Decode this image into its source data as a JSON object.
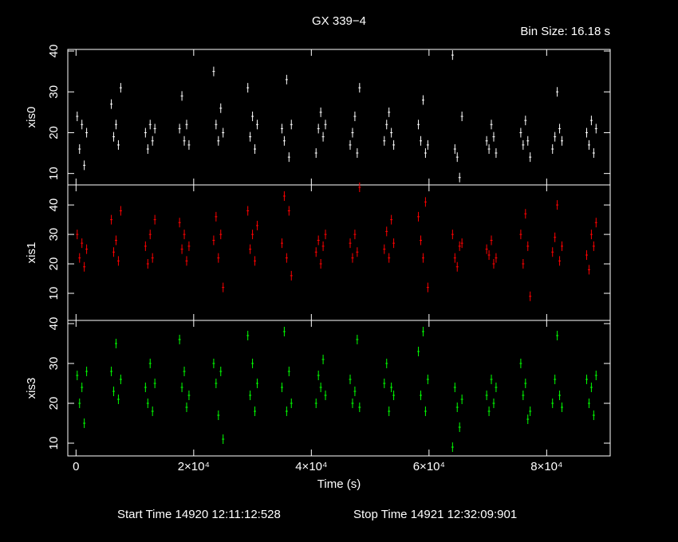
{
  "title": "GX 339−4",
  "subtitle": "Bin Size: 16.18 s",
  "footer": [
    "Start Time 14920 12:11:12:528",
    "Stop Time 14921 12:32:09:901"
  ],
  "chart_data": [
    {
      "type": "scatter",
      "ylabel": "xis0",
      "color": "#ffffff",
      "x": [
        200,
        600,
        1000,
        1400,
        1800,
        6000,
        6400,
        6800,
        7200,
        7600,
        11800,
        12200,
        12600,
        13000,
        13400,
        17600,
        18000,
        18400,
        18800,
        19200,
        23400,
        23800,
        24200,
        24600,
        25000,
        29200,
        29600,
        30000,
        30400,
        30800,
        35000,
        35400,
        35800,
        36200,
        36600,
        40800,
        41200,
        41600,
        42000,
        42400,
        46600,
        47000,
        47400,
        47800,
        48200,
        52400,
        52800,
        53200,
        53600,
        54000,
        58200,
        58600,
        59000,
        59400,
        59800,
        64000,
        64400,
        64800,
        65200,
        65600,
        69800,
        70200,
        70600,
        71000,
        71400,
        75600,
        76000,
        76400,
        76800,
        77200,
        81000,
        81400,
        81800,
        82200,
        82600,
        86800,
        87200,
        87600,
        88000,
        88400
      ],
      "values": [
        24,
        16,
        22,
        12,
        20,
        27,
        19,
        22,
        17,
        31,
        20,
        16,
        22,
        18,
        21,
        21,
        29,
        18,
        22,
        17,
        35,
        22,
        18,
        26,
        20,
        31,
        19,
        24,
        16,
        22,
        21,
        18,
        33,
        14,
        22,
        15,
        21,
        25,
        19,
        22,
        17,
        20,
        24,
        15,
        31,
        18,
        22,
        25,
        20,
        17,
        22,
        18,
        28,
        15,
        17,
        39,
        16,
        14,
        9,
        24,
        18,
        16,
        22,
        19,
        15,
        20,
        17,
        23,
        18,
        14,
        16,
        19,
        30,
        21,
        18,
        20,
        17,
        23,
        15,
        21
      ],
      "xlim": [
        -1400,
        90800
      ],
      "ylim": [
        7.2,
        40.4
      ],
      "yticks": [
        10,
        20,
        30,
        40
      ]
    },
    {
      "type": "scatter",
      "ylabel": "xis1",
      "color": "#ff0000",
      "x": [
        200,
        600,
        1000,
        1400,
        1800,
        6000,
        6400,
        6800,
        7200,
        7600,
        11800,
        12200,
        12600,
        13000,
        13400,
        17600,
        18000,
        18400,
        18800,
        19200,
        23400,
        23800,
        24200,
        24600,
        25000,
        29200,
        29600,
        30000,
        30400,
        30800,
        35000,
        35400,
        35800,
        36200,
        36600,
        40800,
        41200,
        41600,
        42000,
        42400,
        46600,
        47000,
        47400,
        47800,
        48200,
        52400,
        52800,
        53200,
        53600,
        54000,
        58200,
        58600,
        59000,
        59400,
        59800,
        64000,
        64400,
        64800,
        65200,
        65600,
        69800,
        70200,
        70600,
        71000,
        71400,
        75600,
        76000,
        76400,
        76800,
        77200,
        81000,
        81400,
        81800,
        82200,
        82600,
        86800,
        87200,
        87600,
        88000,
        88400
      ],
      "values": [
        30,
        22,
        27,
        19,
        25,
        35,
        24,
        28,
        21,
        38,
        26,
        20,
        30,
        22,
        35,
        34,
        25,
        30,
        21,
        26,
        28,
        36,
        22,
        30,
        12,
        38,
        25,
        30,
        21,
        33,
        27,
        43,
        22,
        38,
        16,
        24,
        28,
        20,
        26,
        30,
        27,
        22,
        30,
        24,
        46,
        25,
        31,
        22,
        35,
        27,
        36,
        28,
        22,
        41,
        12,
        30,
        22,
        19,
        26,
        27,
        25,
        23,
        28,
        20,
        22,
        30,
        20,
        37,
        26,
        9,
        24,
        29,
        40,
        21,
        26,
        23,
        18,
        30,
        26,
        34
      ],
      "xlim": [
        -1400,
        90800
      ],
      "ylim": [
        0.8,
        46.8
      ],
      "yticks": [
        10,
        20,
        30,
        40
      ]
    },
    {
      "type": "scatter",
      "ylabel": "xis3",
      "color": "#00ff00",
      "xlabel": "Time (s)",
      "x": [
        200,
        600,
        1000,
        1400,
        1800,
        6000,
        6400,
        6800,
        7200,
        7600,
        11800,
        12200,
        12600,
        13000,
        13400,
        17600,
        18000,
        18400,
        18800,
        19200,
        23400,
        23800,
        24200,
        24600,
        25000,
        29200,
        29600,
        30000,
        30400,
        30800,
        35000,
        35400,
        35800,
        36200,
        36600,
        40800,
        41200,
        41600,
        42000,
        42400,
        46600,
        47000,
        47400,
        47800,
        48200,
        52400,
        52800,
        53200,
        53600,
        54000,
        58200,
        58600,
        59000,
        59400,
        59800,
        64000,
        64400,
        64800,
        65200,
        65600,
        69800,
        70200,
        70600,
        71000,
        71400,
        75600,
        76000,
        76400,
        76800,
        77200,
        81000,
        81400,
        81800,
        82200,
        82600,
        86800,
        87200,
        87600,
        88000,
        88400
      ],
      "values": [
        27,
        20,
        24,
        15,
        28,
        28,
        23,
        35,
        21,
        26,
        24,
        20,
        30,
        18,
        25,
        36,
        24,
        28,
        19,
        22,
        30,
        25,
        17,
        28,
        11,
        37,
        22,
        30,
        18,
        25,
        24,
        38,
        18,
        28,
        20,
        20,
        27,
        24,
        31,
        22,
        26,
        20,
        23,
        36,
        19,
        25,
        30,
        18,
        24,
        22,
        33,
        22,
        38,
        18,
        26,
        9,
        24,
        19,
        14,
        21,
        22,
        18,
        26,
        20,
        24,
        30,
        22,
        25,
        16,
        18,
        20,
        26,
        37,
        22,
        19,
        26,
        20,
        24,
        17,
        27
      ],
      "xlim": [
        -1400,
        90800
      ],
      "ylim": [
        6.8,
        40.8
      ],
      "yticks": [
        10,
        20,
        30,
        40
      ],
      "xticks": [
        0,
        {
          "value": 20000,
          "label": "2×10⁴"
        },
        {
          "value": 40000,
          "label": "4×10⁴"
        },
        {
          "value": 60000,
          "label": "6×10⁴"
        },
        {
          "value": 80000,
          "label": "8×10⁴"
        }
      ]
    }
  ]
}
